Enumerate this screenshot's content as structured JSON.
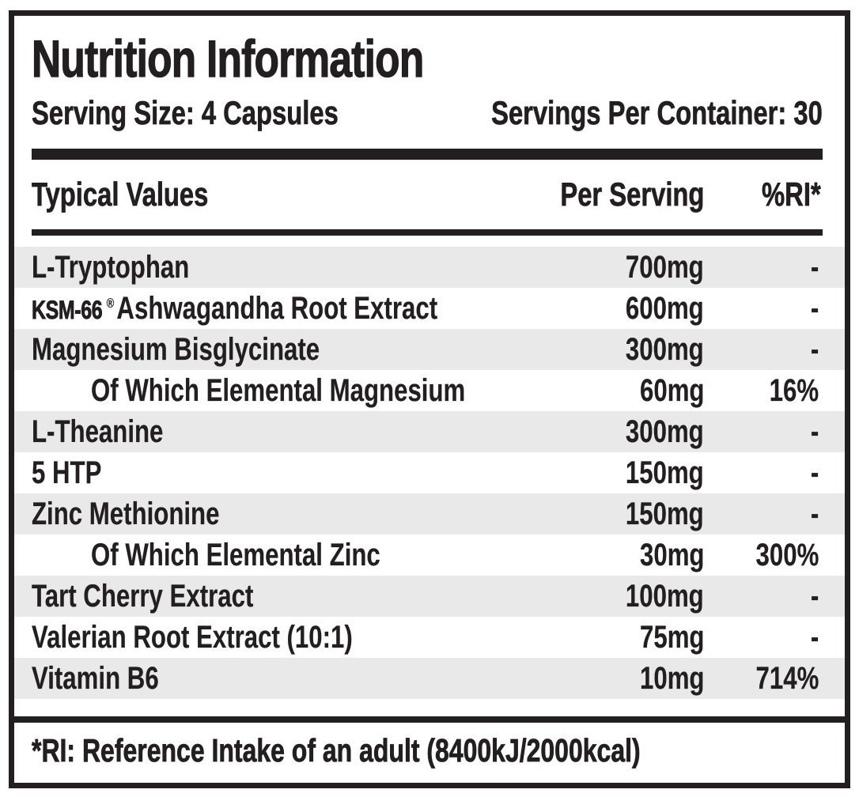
{
  "title": "Nutrition Information",
  "serving": {
    "size_label": "Serving Size: 4 Capsules",
    "per_container_label": "Servings Per Container: 30"
  },
  "table": {
    "columns": {
      "name": "Typical Values",
      "amount": "Per Serving",
      "ri": "%RI*"
    },
    "rows": [
      {
        "name": "L-Tryptophan",
        "amount": "700mg",
        "ri": "-",
        "indent": false
      },
      {
        "prefix": "KSM-66",
        "mark": "®",
        "name": "Ashwagandha Root Extract",
        "amount": "600mg",
        "ri": "-",
        "indent": false
      },
      {
        "name": "Magnesium Bisglycinate",
        "amount": "300mg",
        "ri": "-",
        "indent": false
      },
      {
        "name": "Of Which Elemental Magnesium",
        "amount": "60mg",
        "ri": "16%",
        "indent": true
      },
      {
        "name": "L-Theanine",
        "amount": "300mg",
        "ri": "-",
        "indent": false
      },
      {
        "name": "5 HTP",
        "amount": "150mg",
        "ri": "-",
        "indent": false
      },
      {
        "name": "Zinc Methionine",
        "amount": "150mg",
        "ri": "-",
        "indent": false
      },
      {
        "name": "Of Which Elemental Zinc",
        "amount": "30mg",
        "ri": "300%",
        "indent": true
      },
      {
        "name": "Tart Cherry Extract",
        "amount": "100mg",
        "ri": "-",
        "indent": false
      },
      {
        "name": "Valerian Root Extract (10:1)",
        "amount": "75mg",
        "ri": "-",
        "indent": false
      },
      {
        "name": "Vitamin B6",
        "amount": "10mg",
        "ri": "714%",
        "indent": false
      }
    ]
  },
  "footnote": "*RI: Reference Intake of an adult (8400kJ/2000kcal)",
  "colors": {
    "text": "#231f20",
    "stripe": "#e9e9e9",
    "background": "#ffffff"
  }
}
